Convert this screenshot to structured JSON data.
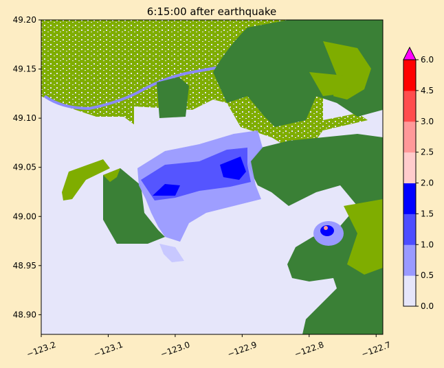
{
  "figure": {
    "title": "6:15:00 after earthquake",
    "background": "#fdedc4"
  },
  "map": {
    "x_ticks": [
      {
        "value": -123.2,
        "label": "−123.2"
      },
      {
        "value": -123.1,
        "label": "−123.1"
      },
      {
        "value": -123.0,
        "label": "−123.0"
      },
      {
        "value": -122.9,
        "label": "−122.9"
      },
      {
        "value": -122.8,
        "label": "−122.8"
      },
      {
        "value": -122.7,
        "label": "−122.7"
      }
    ],
    "y_ticks": [
      {
        "value": 48.9,
        "label": "48.90"
      },
      {
        "value": 48.95,
        "label": "48.95"
      },
      {
        "value": 49.0,
        "label": "49.00"
      },
      {
        "value": 49.05,
        "label": "49.05"
      },
      {
        "value": 49.1,
        "label": "49.10"
      },
      {
        "value": 49.15,
        "label": "49.15"
      },
      {
        "value": 49.2,
        "label": "49.20"
      }
    ],
    "xlim": [
      -123.2,
      -122.69
    ],
    "ylim": [
      48.88,
      49.2
    ],
    "colors": {
      "water": "#e6e6fa",
      "lowland": "#7fad00",
      "highland": "#3a8036",
      "inundation": "#c8c8ff"
    }
  },
  "colorbar": {
    "ticks": [
      "0.0",
      "0.5",
      "1.0",
      "1.5",
      "2.0",
      "2.5",
      "3.0",
      "4.5",
      "6.0"
    ],
    "bands": [
      {
        "from": 0.0,
        "to": 0.5,
        "color": "#e6e6fa"
      },
      {
        "from": 0.5,
        "to": 1.0,
        "color": "#9a9aff"
      },
      {
        "from": 1.0,
        "to": 1.5,
        "color": "#4d4dff"
      },
      {
        "from": 1.5,
        "to": 2.0,
        "color": "#0000ff"
      },
      {
        "from": 2.0,
        "to": 2.5,
        "color": "#ffcccc"
      },
      {
        "from": 2.5,
        "to": 3.0,
        "color": "#ff9999"
      },
      {
        "from": 3.0,
        "to": 4.5,
        "color": "#ff4d4d"
      },
      {
        "from": 4.5,
        "to": 6.0,
        "color": "#ff0000"
      }
    ],
    "extend_color": "#ff00ff"
  }
}
